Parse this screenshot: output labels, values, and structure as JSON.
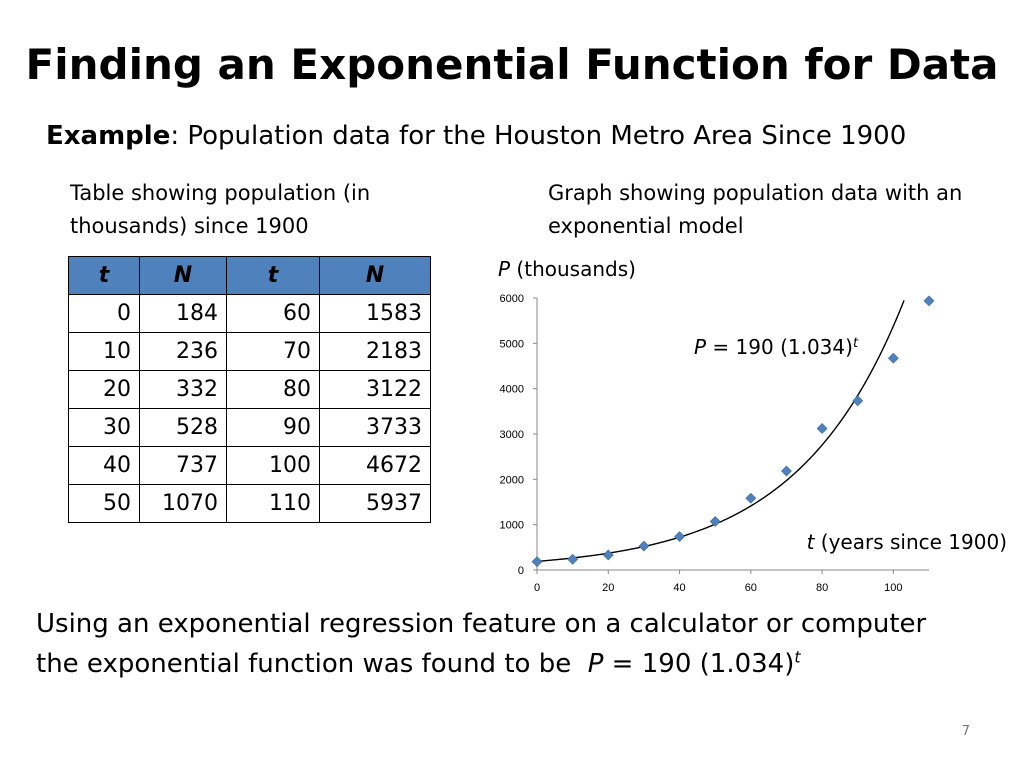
{
  "slide": {
    "title": "Finding an Exponential Function for Data",
    "example_label": "Example",
    "example_text": ": Population data for the Houston Metro Area Since 1900",
    "table_caption": "Table showing population (in thousands) since 1900",
    "graph_caption": "Graph showing population data with an exponential model",
    "bottom_text_line1": "Using an exponential regression feature on a calculator or computer",
    "bottom_text_line2": "the exponential function was found to be",
    "equation": {
      "var": "P",
      "body": " = 190 (1.034)",
      "exp": "t"
    },
    "page_number": "7"
  },
  "table": {
    "headers": [
      "t",
      "N",
      "t",
      "N"
    ],
    "rows": [
      [
        "0",
        "184",
        "60",
        "1583"
      ],
      [
        "10",
        "236",
        "70",
        "2183"
      ],
      [
        "20",
        "332",
        "80",
        "3122"
      ],
      [
        "30",
        "528",
        "90",
        "3733"
      ],
      [
        "40",
        "737",
        "100",
        "4672"
      ],
      [
        "50",
        "1070",
        "110",
        "5937"
      ]
    ]
  },
  "chart_data": {
    "type": "scatter",
    "ylabel_var": "P",
    "ylabel_text": " (thousands)",
    "xlabel_var": "t",
    "xlabel_text": " (years since 1900)",
    "xlim": [
      0,
      110
    ],
    "ylim": [
      0,
      6000
    ],
    "x_ticks": [
      0,
      20,
      40,
      60,
      80,
      100
    ],
    "y_ticks": [
      0,
      1000,
      2000,
      3000,
      4000,
      5000,
      6000
    ],
    "grid": false,
    "marker_color": "#4f81bd",
    "x": [
      0,
      10,
      20,
      30,
      40,
      50,
      60,
      70,
      80,
      90,
      100,
      110
    ],
    "y": [
      184,
      236,
      332,
      528,
      737,
      1070,
      1583,
      2183,
      3122,
      3733,
      4672,
      5937
    ],
    "model": {
      "a": 190,
      "b": 1.034,
      "label_var": "P",
      "label_body": " = 190 (1.034)",
      "label_exp": "t"
    }
  }
}
